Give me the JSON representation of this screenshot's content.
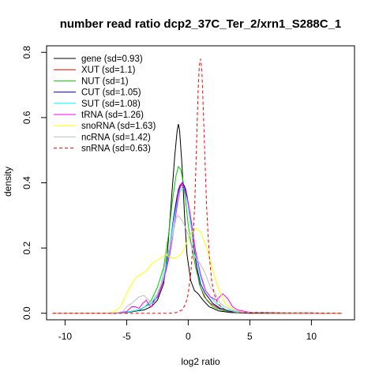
{
  "chart_data": {
    "type": "line",
    "title": "number read ratio dcp2_37C_Ter_2/xrn1_S288C_1",
    "xlabel": "log2 ratio",
    "ylabel": "density",
    "xlim": [
      -11.5,
      13.5
    ],
    "ylim": [
      -0.02,
      0.82
    ],
    "x_ticks": [
      -10,
      -5,
      0,
      5,
      10
    ],
    "y_ticks": [
      0.0,
      0.2,
      0.4,
      0.6,
      0.8
    ],
    "x_tick_labels": [
      "-10",
      "-5",
      "0",
      "5",
      "10"
    ],
    "y_tick_labels": [
      "0.0",
      "0.2",
      "0.4",
      "0.6",
      "0.8"
    ],
    "grid": false,
    "legend_position": "top-left",
    "series": [
      {
        "name": "gene (sd=0.93)",
        "color": "#000000",
        "dash": "solid",
        "x": [
          -11,
          -6,
          -5,
          -4.5,
          -4,
          -3.6,
          -3,
          -2.5,
          -2,
          -1.7,
          -1.4,
          -1.1,
          -0.9,
          -0.8,
          -0.7,
          -0.5,
          -0.3,
          -0.1,
          0.2,
          0.5,
          0.8,
          1.2,
          1.7,
          2.5,
          3.5,
          5,
          12.5
        ],
        "y": [
          0.0,
          0.0,
          0.002,
          0.005,
          0.008,
          0.01,
          0.02,
          0.04,
          0.09,
          0.18,
          0.33,
          0.48,
          0.56,
          0.58,
          0.56,
          0.45,
          0.3,
          0.18,
          0.1,
          0.07,
          0.06,
          0.04,
          0.02,
          0.007,
          0.002,
          0.0,
          0.0
        ]
      },
      {
        "name": "XUT (sd=1.1)",
        "color": "#ff0000",
        "dash": "solid",
        "x": [
          -11,
          -6,
          -5,
          -4,
          -3.5,
          -3,
          -2.5,
          -2,
          -1.5,
          -1.2,
          -1,
          -0.8,
          -0.6,
          -0.4,
          -0.2,
          0,
          0.3,
          0.6,
          0.9,
          1.3,
          1.8,
          2.5,
          3.5,
          4.5,
          12.5
        ],
        "y": [
          0.0,
          0.0,
          0.003,
          0.01,
          0.02,
          0.03,
          0.05,
          0.1,
          0.2,
          0.28,
          0.33,
          0.38,
          0.39,
          0.395,
          0.38,
          0.33,
          0.25,
          0.16,
          0.09,
          0.05,
          0.03,
          0.015,
          0.005,
          0.002,
          0.0
        ]
      },
      {
        "name": "NUT (sd=1)",
        "color": "#00cc00",
        "dash": "solid",
        "x": [
          -11,
          -6,
          -5,
          -4,
          -3.5,
          -3,
          -2.5,
          -2,
          -1.6,
          -1.3,
          -1,
          -0.8,
          -0.6,
          -0.4,
          -0.2,
          0,
          0.3,
          0.6,
          1,
          1.5,
          2,
          2.8,
          4,
          12.5
        ],
        "y": [
          0.0,
          0.0,
          0.003,
          0.01,
          0.02,
          0.04,
          0.08,
          0.14,
          0.24,
          0.34,
          0.42,
          0.45,
          0.44,
          0.4,
          0.34,
          0.27,
          0.2,
          0.14,
          0.08,
          0.04,
          0.02,
          0.008,
          0.002,
          0.0
        ]
      },
      {
        "name": "CUT (sd=1.05)",
        "color": "#0000cc",
        "dash": "solid",
        "x": [
          -11,
          -6,
          -5,
          -4,
          -3.5,
          -3,
          -2.5,
          -2,
          -1.5,
          -1.2,
          -0.9,
          -0.7,
          -0.5,
          -0.3,
          -0.1,
          0.1,
          0.4,
          0.7,
          1,
          1.4,
          2,
          2.6,
          3.5,
          4.5,
          12.5
        ],
        "y": [
          0.0,
          0.0,
          0.003,
          0.01,
          0.02,
          0.03,
          0.05,
          0.1,
          0.2,
          0.29,
          0.36,
          0.39,
          0.4,
          0.39,
          0.36,
          0.31,
          0.22,
          0.14,
          0.09,
          0.06,
          0.03,
          0.015,
          0.005,
          0.002,
          0.0
        ]
      },
      {
        "name": "SUT (sd=1.08)",
        "color": "#00ffff",
        "dash": "solid",
        "x": [
          -11,
          -6,
          -5,
          -4,
          -3.5,
          -3,
          -2.5,
          -2,
          -1.5,
          -1.2,
          -0.9,
          -0.7,
          -0.5,
          -0.3,
          0,
          0.3,
          0.6,
          1,
          1.4,
          1.8,
          2.3,
          3,
          4,
          12.5
        ],
        "y": [
          0.0,
          0.0,
          0.003,
          0.01,
          0.02,
          0.03,
          0.06,
          0.11,
          0.2,
          0.28,
          0.34,
          0.37,
          0.385,
          0.38,
          0.33,
          0.25,
          0.18,
          0.11,
          0.07,
          0.05,
          0.03,
          0.012,
          0.003,
          0.0
        ]
      },
      {
        "name": "tRNA (sd=1.26)",
        "color": "#ff00ff",
        "dash": "solid",
        "x": [
          -11,
          -6,
          -5,
          -4.6,
          -4.3,
          -4,
          -3.7,
          -3.4,
          -3.2,
          -3,
          -2.8,
          -2.5,
          -2,
          -1.5,
          -1.2,
          -0.9,
          -0.7,
          -0.5,
          -0.3,
          0,
          0.3,
          0.6,
          1,
          1.4,
          1.8,
          2.3,
          2.8,
          3.2,
          3.6,
          4,
          5,
          12.5
        ],
        "y": [
          0.0,
          0.0,
          0.005,
          0.02,
          0.02,
          0.015,
          0.03,
          0.04,
          0.025,
          0.02,
          0.035,
          0.05,
          0.1,
          0.18,
          0.25,
          0.33,
          0.38,
          0.4,
          0.38,
          0.34,
          0.27,
          0.19,
          0.12,
          0.07,
          0.05,
          0.04,
          0.06,
          0.045,
          0.02,
          0.01,
          0.003,
          0.0
        ]
      },
      {
        "name": "snoRNA (sd=1.63)",
        "color": "#ffff00",
        "dash": "solid",
        "x": [
          -11,
          -6.5,
          -6,
          -5.5,
          -5,
          -4.6,
          -4.2,
          -3.8,
          -3.4,
          -3,
          -2.6,
          -2.2,
          -1.8,
          -1.4,
          -1,
          -0.6,
          -0.3,
          0,
          0.3,
          0.6,
          1,
          1.5,
          2,
          2.5,
          3,
          3.5,
          4,
          5,
          12.5
        ],
        "y": [
          0.0,
          0.0,
          0.005,
          0.02,
          0.06,
          0.09,
          0.11,
          0.12,
          0.13,
          0.15,
          0.16,
          0.17,
          0.18,
          0.17,
          0.17,
          0.18,
          0.2,
          0.23,
          0.25,
          0.26,
          0.25,
          0.2,
          0.13,
          0.07,
          0.03,
          0.015,
          0.005,
          0.002,
          0.0
        ]
      },
      {
        "name": "ncRNA (sd=1.42)",
        "color": "#bebebe",
        "dash": "solid",
        "x": [
          -11,
          -6,
          -5.3,
          -5,
          -4.6,
          -4.3,
          -4,
          -3.6,
          -3.2,
          -2.8,
          -2.5,
          -2.2,
          -1.8,
          -1.5,
          -1.2,
          -1,
          -0.8,
          -0.6,
          -0.3,
          0,
          0.3,
          0.6,
          1,
          1.4,
          1.8,
          2.2,
          2.6,
          3,
          3.5,
          4.5,
          12.5
        ],
        "y": [
          0.0,
          0.0,
          0.005,
          0.02,
          0.03,
          0.04,
          0.05,
          0.055,
          0.04,
          0.03,
          0.06,
          0.09,
          0.17,
          0.2,
          0.25,
          0.29,
          0.3,
          0.29,
          0.27,
          0.24,
          0.2,
          0.17,
          0.15,
          0.12,
          0.08,
          0.06,
          0.03,
          0.02,
          0.01,
          0.003,
          0.0
        ]
      },
      {
        "name": "snRNA (sd=0.63)",
        "color": "#ff0000",
        "dash": "dashed",
        "x": [
          -11,
          -1.5,
          -1,
          -0.5,
          -0.2,
          0,
          0.2,
          0.4,
          0.55,
          0.7,
          0.8,
          0.9,
          1,
          1.1,
          1.2,
          1.35,
          1.5,
          1.7,
          1.9,
          2.1,
          2.4,
          2.8,
          3.5,
          12.5
        ],
        "y": [
          0.0,
          0.0,
          0.002,
          0.01,
          0.03,
          0.06,
          0.12,
          0.22,
          0.36,
          0.55,
          0.68,
          0.76,
          0.78,
          0.75,
          0.65,
          0.48,
          0.32,
          0.18,
          0.1,
          0.06,
          0.03,
          0.015,
          0.002,
          0.0
        ]
      }
    ]
  }
}
